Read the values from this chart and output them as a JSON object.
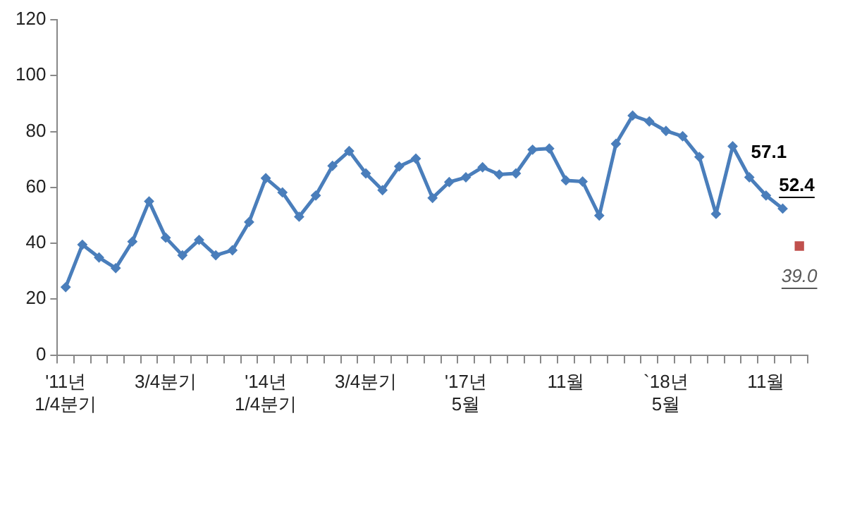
{
  "chart_data": {
    "type": "line",
    "categories": [
      "'11년\n1/4분기",
      null,
      null,
      null,
      null,
      null,
      "3/4분기",
      null,
      null,
      null,
      null,
      null,
      "'14년\n1/4분기",
      null,
      null,
      null,
      null,
      null,
      "3/4분기",
      null,
      null,
      null,
      null,
      null,
      "'17년\n5월",
      null,
      null,
      null,
      null,
      null,
      "11월",
      null,
      null,
      null,
      null,
      null,
      "`18년\n5월",
      null,
      null,
      null,
      null,
      null,
      "11월",
      null,
      null
    ],
    "series": [
      {
        "color": "#4a7ebb",
        "marker": "diamond",
        "values": [
          24.3,
          39.5,
          34.9,
          31.1,
          40.6,
          55,
          42,
          35.7,
          41.2,
          35.7,
          37.5,
          47.6,
          63.3,
          58.2,
          49.5,
          57.1,
          67.7,
          73,
          65,
          59,
          67.5,
          70.3,
          56.2,
          61.9,
          63.6,
          67.2,
          64.6,
          65,
          73.5,
          73.9,
          62.5,
          62.1,
          49.9,
          75.6,
          85.7,
          83.6,
          80.2,
          78.3,
          70.9,
          50.5,
          74.7,
          63.6,
          57.1,
          52.4,
          null
        ],
        "value_labels": [
          null,
          null,
          null,
          null,
          null,
          null,
          null,
          null,
          null,
          null,
          null,
          null,
          null,
          null,
          null,
          null,
          null,
          null,
          null,
          null,
          null,
          null,
          null,
          null,
          null,
          null,
          null,
          null,
          null,
          null,
          null,
          null,
          null,
          null,
          null,
          null,
          null,
          null,
          null,
          null,
          null,
          null,
          "57.1",
          "52.4",
          null
        ]
      },
      {
        "type": "scatter",
        "color": "#c0504d",
        "marker": "square",
        "values": [
          null,
          null,
          null,
          null,
          null,
          null,
          null,
          null,
          null,
          null,
          null,
          null,
          null,
          null,
          null,
          null,
          null,
          null,
          null,
          null,
          null,
          null,
          null,
          null,
          null,
          null,
          null,
          null,
          null,
          null,
          null,
          null,
          null,
          null,
          null,
          null,
          null,
          null,
          null,
          null,
          null,
          null,
          null,
          null,
          39.0
        ],
        "value_labels": [
          null,
          null,
          null,
          null,
          null,
          null,
          null,
          null,
          null,
          null,
          null,
          null,
          null,
          null,
          null,
          null,
          null,
          null,
          null,
          null,
          null,
          null,
          null,
          null,
          null,
          null,
          null,
          null,
          null,
          null,
          null,
          null,
          null,
          null,
          null,
          null,
          null,
          null,
          null,
          null,
          null,
          null,
          null,
          null,
          "39.0"
        ]
      }
    ],
    "ylim": [
      0,
      120
    ],
    "yticks": [
      0,
      20,
      40,
      60,
      80,
      100,
      120
    ],
    "grid": false,
    "legend": false
  }
}
